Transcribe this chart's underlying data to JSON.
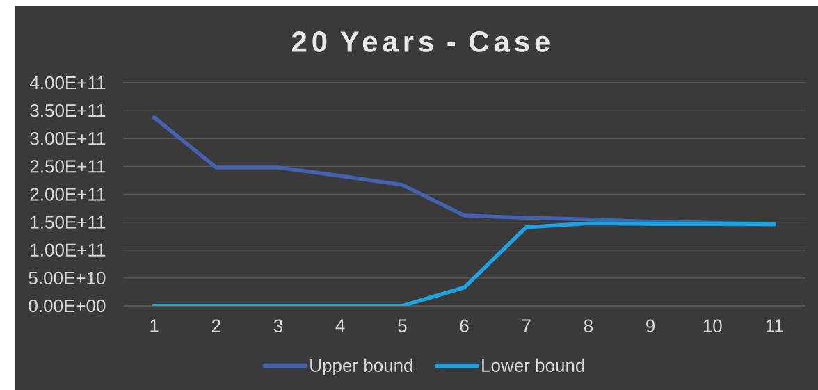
{
  "chart_data": {
    "type": "line",
    "title": "20 Years - Case",
    "categories": [
      "1",
      "2",
      "3",
      "4",
      "5",
      "6",
      "7",
      "8",
      "9",
      "10",
      "11"
    ],
    "series": [
      {
        "name": "Upper bound",
        "color": "#4363b0",
        "values": [
          338000000000.0,
          248000000000.0,
          248000000000.0,
          233000000000.0,
          217000000000.0,
          162000000000.0,
          158000000000.0,
          155000000000.0,
          151000000000.0,
          149000000000.0,
          147000000000.0
        ]
      },
      {
        "name": "Lower bound",
        "color": "#1fa2e2",
        "values": [
          0,
          0,
          0,
          0,
          0,
          33000000000.0,
          141000000000.0,
          148000000000.0,
          147000000000.0,
          147000000000.0,
          146000000000.0
        ]
      }
    ],
    "ylim": [
      0,
      400000000000.0
    ],
    "yticks": [
      {
        "value": 0,
        "label": "0.00E+00"
      },
      {
        "value": 50000000000.0,
        "label": "5.00E+10"
      },
      {
        "value": 100000000000.0,
        "label": "1.00E+11"
      },
      {
        "value": 150000000000.0,
        "label": "1.50E+11"
      },
      {
        "value": 200000000000.0,
        "label": "2.00E+11"
      },
      {
        "value": 250000000000.0,
        "label": "2.50E+11"
      },
      {
        "value": 300000000000.0,
        "label": "3.00E+11"
      },
      {
        "value": 350000000000.0,
        "label": "3.50E+11"
      },
      {
        "value": 400000000000.0,
        "label": "4.00E+11"
      }
    ],
    "grid": "y",
    "legend": "bottom"
  }
}
